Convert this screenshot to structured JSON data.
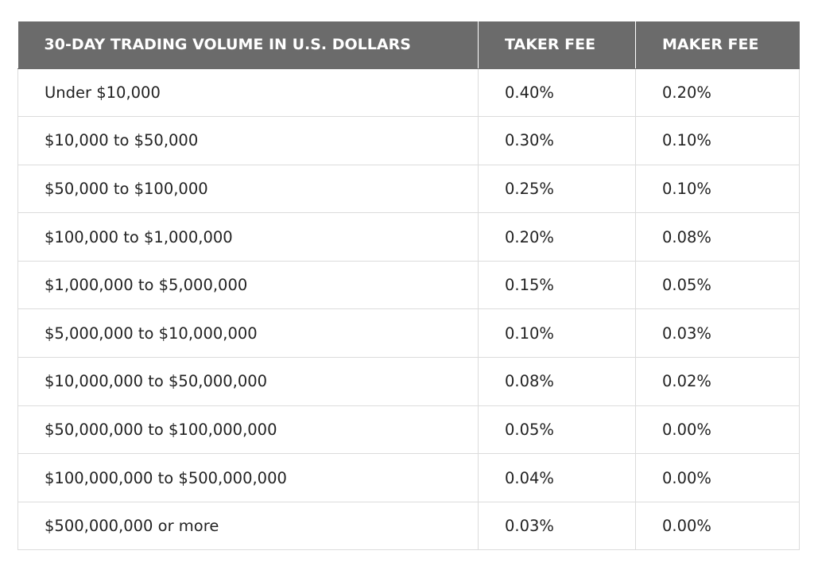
{
  "table": {
    "headers": {
      "volume": "30-DAY TRADING VOLUME IN U.S. DOLLARS",
      "taker": "TAKER FEE",
      "maker": "MAKER FEE"
    },
    "rows": [
      {
        "volume": "Under $10,000",
        "taker": "0.40%",
        "maker": "0.20%"
      },
      {
        "volume": "$10,000 to $50,000",
        "taker": "0.30%",
        "maker": "0.10%"
      },
      {
        "volume": "$50,000 to $100,000",
        "taker": "0.25%",
        "maker": "0.10%"
      },
      {
        "volume": "$100,000 to $1,000,000",
        "taker": "0.20%",
        "maker": "0.08%"
      },
      {
        "volume": "$1,000,000 to $5,000,000",
        "taker": "0.15%",
        "maker": "0.05%"
      },
      {
        "volume": "$5,000,000 to $10,000,000",
        "taker": "0.10%",
        "maker": "0.03%"
      },
      {
        "volume": "$10,000,000 to $50,000,000",
        "taker": "0.08%",
        "maker": "0.02%"
      },
      {
        "volume": "$50,000,000 to $100,000,000",
        "taker": "0.05%",
        "maker": "0.00%"
      },
      {
        "volume": "$100,000,000 to $500,000,000",
        "taker": "0.04%",
        "maker": "0.00%"
      },
      {
        "volume": "$500,000,000 or more",
        "taker": "0.03%",
        "maker": "0.00%"
      }
    ]
  },
  "colors": {
    "header_bg": "#6b6b6b",
    "header_text": "#ffffff",
    "grid_line": "#dcdcdc",
    "body_text": "#222222"
  }
}
